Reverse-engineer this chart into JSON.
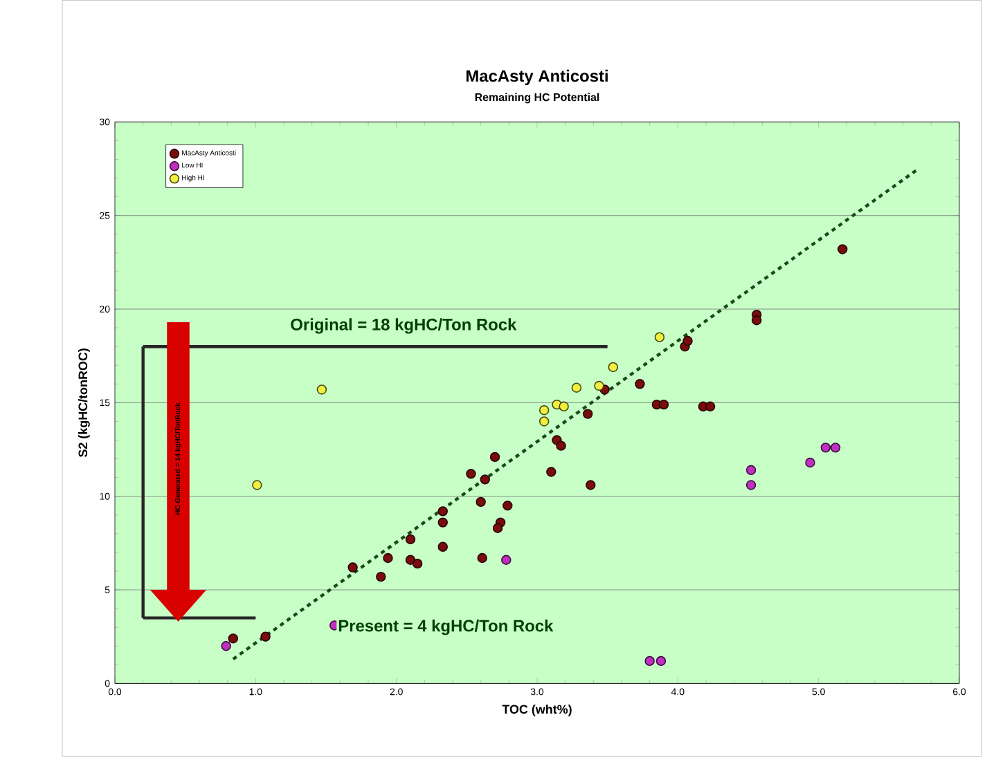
{
  "chart_data": {
    "type": "scatter",
    "title": "MacAsty Anticosti",
    "subtitle": "Remaining HC Potential",
    "xlabel": "TOC (wht%)",
    "ylabel": "S2 (kgHC/tonROC)",
    "xlim": [
      0,
      6
    ],
    "ylim": [
      0,
      30
    ],
    "xticks": [
      {
        "value": 0,
        "label": "0.0"
      },
      {
        "value": 1,
        "label": "1.0"
      },
      {
        "value": 2,
        "label": "2.0"
      },
      {
        "value": 3,
        "label": "3.0"
      },
      {
        "value": 4,
        "label": "4.0"
      },
      {
        "value": 5,
        "label": "5.0"
      },
      {
        "value": 6,
        "label": "6.0"
      }
    ],
    "yticks": [
      0,
      5,
      10,
      15,
      20,
      25,
      30
    ],
    "grid": "y",
    "legend": "top left",
    "series": [
      {
        "name": "MacAsty Anticosti",
        "color": "#7a0c0c",
        "x": [
          5.17,
          4.56,
          4.56,
          4.05,
          4.07,
          3.85,
          3.9,
          4.18,
          4.23,
          3.73,
          3.48,
          3.36,
          3.14,
          3.17,
          3.1,
          3.38,
          2.7,
          2.53,
          2.63,
          2.6,
          2.79,
          2.74,
          2.72,
          2.61,
          2.33,
          2.33,
          2.1,
          2.33,
          1.94,
          2.1,
          2.15,
          1.69,
          1.89,
          1.07,
          0.84
        ],
        "values": [
          23.2,
          19.7,
          19.4,
          18.0,
          18.3,
          14.9,
          14.9,
          14.8,
          14.8,
          16.0,
          15.7,
          14.4,
          13.0,
          12.7,
          11.3,
          10.6,
          12.1,
          11.2,
          10.9,
          9.7,
          9.5,
          8.6,
          8.3,
          6.7,
          9.2,
          8.6,
          7.7,
          7.3,
          6.7,
          6.6,
          6.4,
          6.2,
          5.7,
          2.5,
          2.4
        ]
      },
      {
        "name": "Low HI",
        "color": "#c030c0",
        "x": [
          2.78,
          4.52,
          4.52,
          4.94,
          5.05,
          5.12,
          0.79,
          1.56,
          3.8,
          3.88
        ],
        "values": [
          6.6,
          11.4,
          10.6,
          11.8,
          12.6,
          12.6,
          2.0,
          3.1,
          1.2,
          1.2
        ]
      },
      {
        "name": "High HI",
        "color": "#f0f040",
        "x": [
          3.87,
          3.54,
          3.28,
          3.44,
          3.05,
          3.14,
          3.19,
          3.05,
          1.47,
          1.01
        ],
        "values": [
          18.5,
          16.9,
          15.8,
          15.9,
          14.6,
          14.9,
          14.8,
          14.0,
          15.7,
          10.6
        ]
      },
      {
        "type": "line",
        "color": "#1a4a1a",
        "line_style": "dashed",
        "x": [
          0.84,
          5.71
        ],
        "values": [
          1.3,
          27.5
        ]
      }
    ],
    "ref_lines": [
      {
        "axis": "y",
        "value": 18,
        "label": "Original = 18 kgHC/Ton Rock",
        "color": "#262626"
      },
      {
        "axis": "y",
        "value": 3.5,
        "color": "#262626"
      },
      {
        "axis": "x",
        "value": 0.2,
        "color": "#262626"
      }
    ],
    "annotations": [
      "Present = 4 kgHC/Ton Rock",
      "HC Generated = 14 kgHC/TonRock"
    ]
  }
}
